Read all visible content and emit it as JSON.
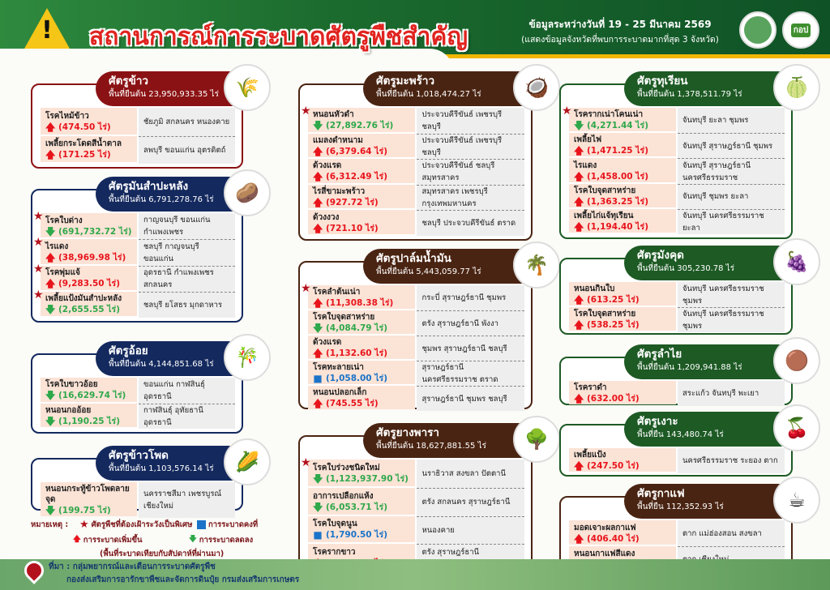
{
  "header": {
    "title": "สถานการณ์การระบาดศัตรูพืชสำคัญ",
    "date": "ข้อมูลระหว่างวันที่ 19 - 25 มีนาคม 2569",
    "note": "(แสดงข้อมูลจังหวัดที่พบการระบาดมากที่สุด 3 จังหวัด)",
    "logo2_text": "กอป"
  },
  "colors": {
    "rice": "#8b1214",
    "field": "#14295e",
    "brown": "#4a2412",
    "fruit": "#1d5a24",
    "up": "#e8141c",
    "down": "#2ea84a",
    "stable": "#1a73c8"
  },
  "cards": [
    {
      "title": "ศัตรูข้าว",
      "area": "พื้นที่ยืนต้น 23,950,933.35 ไร่",
      "color": "#8b1214",
      "icon": "rice-icon",
      "rows": [
        {
          "name": "โรคไหม้ข้าว",
          "value": "(474.50 ไร่)",
          "trend": "up",
          "star": false,
          "provinces": "ชัยภูมิ สกลนคร หนองคาย"
        },
        {
          "name": "เพลี้ยกระโดดสีน้ำตาล",
          "value": "(171.25 ไร่)",
          "trend": "up",
          "star": false,
          "provinces": "ลพบุรี ขอนแก่น อุตรดิตถ์"
        }
      ]
    },
    {
      "title": "ศัตรูมันสำปะหลัง",
      "area": "พื้นที่ยืนต้น 6,791,278.76 ไร่",
      "color": "#14295e",
      "icon": "cassava-icon",
      "rows": [
        {
          "name": "โรคใบด่าง",
          "value": "(691,732.72 ไร่)",
          "trend": "down",
          "star": true,
          "provinces": "กาญจนบุรี ขอนแก่น กำแพงเพชร"
        },
        {
          "name": "ไรแดง",
          "value": "(38,969.98 ไร่)",
          "trend": "up",
          "star": true,
          "provinces": "ชลบุรี กาญจนบุรี ขอนแก่น"
        },
        {
          "name": "โรคพุ่มแจ้",
          "value": "(9,283.50 ไร่)",
          "trend": "up",
          "star": true,
          "provinces": "อุดรธานี กำแพงเพชร สกลนคร"
        },
        {
          "name": "เพลี้ยแป้งมันสำปะหลัง",
          "value": "(2,655.55 ไร่)",
          "trend": "down",
          "star": true,
          "provinces": "ชลบุรี ยโสธร มุกดาหาร"
        }
      ]
    },
    {
      "title": "ศัตรูอ้อย",
      "area": "พื้นที่ยืนต้น 4,144,851.68 ไร่",
      "color": "#14295e",
      "icon": "sugarcane-icon",
      "rows": [
        {
          "name": "โรคใบขาวอ้อย",
          "value": "(16,629.74  ไร่)",
          "trend": "down",
          "star": false,
          "provinces": "ขอนแก่น กาฬสินธุ์ อุดรธานี"
        },
        {
          "name": "หนอนกออ้อย",
          "value": "(1,190.25 ไร่)",
          "trend": "down",
          "star": false,
          "provinces": "กาฬสินธุ์ อุทัยธานี  อุดรธานี"
        }
      ]
    },
    {
      "title": "ศัตรูข้าวโพด",
      "area": "พื้นที่ยืนต้น 1,103,576.14 ไร่",
      "color": "#14295e",
      "icon": "corn-icon",
      "rows": [
        {
          "name": "หนอนกระทู้ข้าวโพดลายจุด",
          "value": "(199.75 ไร่)",
          "trend": "down",
          "star": false,
          "provinces": "นครราชสีมา เพชรบูรณ์ เชียงใหม่"
        }
      ]
    },
    {
      "title": "ศัตรูมะพร้าว",
      "area": "พื้นที่ยืนต้น 1,018,474.27 ไร่",
      "color": "#4a2412",
      "icon": "coconut-icon",
      "rows": [
        {
          "name": "หนอนหัวดำ",
          "value": "(27,892.76 ไร่)",
          "trend": "down",
          "star": true,
          "provinces": "ประจวบคีรีขันธ์ เพชรบุรี ชลบุรี"
        },
        {
          "name": "แมลงดำหนาม",
          "value": "(6,379.64 ไร่)",
          "trend": "up",
          "star": false,
          "provinces": "ประจวบคีรีขันธ์ เพชรบุรี ชลบุรี"
        },
        {
          "name": "ด้วงแรด",
          "value": "(6,312.49 ไร่)",
          "trend": "up",
          "star": false,
          "provinces": "ประจวบคีรีขันธ์ ชลบุรี สมุทรสาคร"
        },
        {
          "name": "ไรสี่ขามะพร้าว",
          "value": "(927.72 ไร่)",
          "trend": "up",
          "star": false,
          "provinces": "สมุทรสาคร เพชรบุรี กรุงเทพมหานคร"
        },
        {
          "name": "ด้วงงวง",
          "value": "(721.10 ไร่)",
          "trend": "up",
          "star": false,
          "provinces": "ชลบุรี ประจวบคีรีขันธ์ ตราด"
        }
      ]
    },
    {
      "title": "ศัตรูปาล์มน้ำมัน",
      "area": "พื้นที่ยืนต้น 5,443,059.77  ไร่",
      "color": "#4a2412",
      "icon": "oil-palm-icon",
      "rows": [
        {
          "name": "โรคลำต้นเน่า",
          "value": "(11,308.38  ไร่)",
          "trend": "up",
          "star": true,
          "provinces": "กระบี่ สุราษฎร์ธานี ชุมพร"
        },
        {
          "name": "โรคใบจุดสาหร่าย",
          "value": "(4,084.79 ไร่)",
          "trend": "down",
          "star": false,
          "provinces": "ตรัง สุราษฎร์ธานี พังงา"
        },
        {
          "name": "ด้วงแรด",
          "value": "(1,132.60 ไร่)",
          "trend": "up",
          "star": false,
          "provinces": "ชุมพร สุราษฎร์ธานี ชลบุรี"
        },
        {
          "name": "โรคทะลายเน่า",
          "value": "(1,058.00 ไร่)",
          "trend": "stable",
          "star": false,
          "provinces": "สุราษฎร์ธานี นครศรีธรรมราช ตราด"
        },
        {
          "name": "หนอนปลอกเล็ก",
          "value": "(745.55 ไร่)",
          "trend": "up",
          "star": false,
          "provinces": "สุราษฎร์ธานี ชุมพร ชลบุรี"
        }
      ]
    },
    {
      "title": "ศัตรูยางพารา",
      "area": "พื้นที่ยืนต้น 18,627,881.55  ไร่",
      "color": "#4a2412",
      "icon": "rubber-tree-icon",
      "rows": [
        {
          "name": "โรคใบร่วงชนิดใหม่",
          "value": "(1,123,937.90 ไร่)",
          "trend": "down",
          "star": true,
          "provinces": "นราธิวาส สงขลา ปัตตานี"
        },
        {
          "name": "อาการเปลือกแห้ง",
          "value": "(6,053.71 ไร่)",
          "trend": "down",
          "star": false,
          "provinces": "ตรัง สกลนคร สุราษฎร์ธานี"
        },
        {
          "name": "โรคใบจุดนูน",
          "value": "(1,790.50 ไร่)",
          "trend": "stable",
          "star": false,
          "provinces": "หนองคาย"
        },
        {
          "name": "โรครากขาว",
          "value": "(1,636.95 ไร่)",
          "trend": "up",
          "star": false,
          "provinces": "ตรัง สุราษฎร์ธานี นครศรีธรรมราช"
        }
      ]
    },
    {
      "title": "ศัตรูทุเรียน",
      "area": "พื้นที่ยืนต้น 1,378,511.79  ไร่",
      "color": "#1d5a24",
      "icon": "durian-icon",
      "rows": [
        {
          "name": "โรครากเน่าโคนเน่า",
          "value": "(4,271.44 ไร่)",
          "trend": "down",
          "star": true,
          "provinces": "จันทบุรี ยะลา ชุมพร"
        },
        {
          "name": "เพลี้ยไฟ",
          "value": "(1,471.25 ไร่)",
          "trend": "up",
          "star": false,
          "provinces": "จันทบุรี สุราษฎร์ธานี ชุมพร"
        },
        {
          "name": "ไรแดง",
          "value": "(1,458.00 ไร่)",
          "trend": "up",
          "star": false,
          "provinces": "จันทบุรี สุราษฎร์ธานี นครศรีธรรมราช"
        },
        {
          "name": "โรคใบจุดสาหร่าย",
          "value": "(1,363.25 ไร่)",
          "trend": "up",
          "star": false,
          "provinces": "จันทบุรี ชุมพร ยะลา"
        },
        {
          "name": "เพลี้ยไก่แจ้ทุเรียน",
          "value": "(1,194.40 ไร่)",
          "trend": "up",
          "star": false,
          "provinces": "จันทบุรี นครศรีธรรมราช ยะลา"
        }
      ]
    },
    {
      "title": "ศัตรูมังคุด",
      "area": "พื้นที่ยืนต้น 305,230.78  ไร่",
      "color": "#1d5a24",
      "icon": "mangosteen-icon",
      "rows": [
        {
          "name": "หนอนกินใบ",
          "value": "(613.25 ไร่)",
          "trend": "up",
          "star": false,
          "provinces": "จันทบุรี นครศรีธรรมราช ชุมพร"
        },
        {
          "name": "โรคใบจุดสาหร่าย",
          "value": "(538.25 ไร่)",
          "trend": "up",
          "star": false,
          "provinces": "จันทบุรี นครศรีธรรมราช ชุมพร"
        }
      ]
    },
    {
      "title": "ศัตรูลำไย",
      "area": "พื้นที่ยืนต้น 1,209,941.88  ไร่",
      "color": "#1d5a24",
      "icon": "longan-icon",
      "rows": [
        {
          "name": "โรคราดำ",
          "value": "(632.00 ไร่)",
          "trend": "up",
          "star": false,
          "provinces": "สระแก้ว จันทบุรี พะเยา"
        }
      ]
    },
    {
      "title": "ศัตรูเงาะ",
      "area": "พื้นที่ยืน 143,480.74 ไร่",
      "color": "#1d5a24",
      "icon": "rambutan-icon",
      "rows": [
        {
          "name": "เพลี้ยแป้ง",
          "value": "(247.50 ไร่)",
          "trend": "up",
          "star": false,
          "provinces": "นครศรีธรรมราช ระยอง ตาก"
        }
      ]
    },
    {
      "title": "ศัตรูกาแฟ",
      "area": "พื้นที่ยืน 112,352.93  ไร่",
      "color": "#4a2412",
      "icon": "coffee-icon",
      "rows": [
        {
          "name": "มอดเจาะผลกาแฟ",
          "value": "(406.40 ไร่)",
          "trend": "up",
          "star": false,
          "provinces": "ตาก แม่ฮ่องสอน สงขลา"
        },
        {
          "name": "หนอนกาแฟสีแดง",
          "value": "(177.50 ไร่)",
          "trend": "stable",
          "star": false,
          "provinces": "ตาก เชียงใหม่"
        }
      ]
    }
  ],
  "legend": {
    "label": "หมายเหตุ :",
    "star": "ศัตรูพืชที่ต้องเฝ้าระวังเป็นพิเศษ",
    "stable": "การระบาดคงที่",
    "up": "การระบาดเพิ่มขึ้น",
    "down": "การระบาดลดลง",
    "note": "(พื้นที่ระบาดเทียบกับสัปดาห์ที่ผ่านมา)"
  },
  "source": {
    "line1": "ที่มา : กลุ่มพยากรณ์และเตือนการระบาดศัตรูพืช",
    "line2": "กองส่งเสริมการอารักขาพืชและจัดการดินปุ๋ย กรมส่งเสริมการเกษตร"
  }
}
